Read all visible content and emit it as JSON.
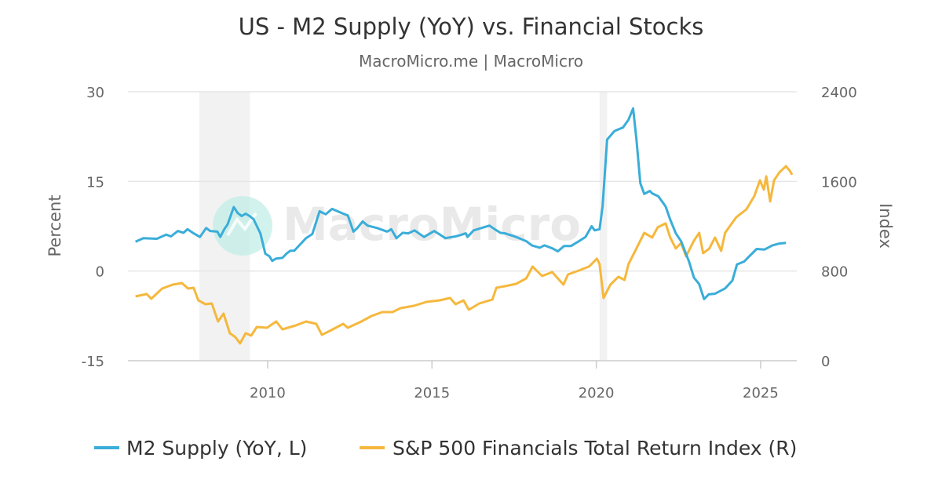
{
  "chart_data": {
    "type": "line",
    "title": "US - M2 Supply (YoY) vs. Financial Stocks",
    "subtitle": "MacroMicro.me | MacroMicro",
    "watermark": "MacroMicro",
    "xlim": [
      2005.75,
      2026.1
    ],
    "x_ticks": [
      2010,
      2015,
      2020,
      2025
    ],
    "x_tick_labels": [
      "2010",
      "2015",
      "2020",
      "2025"
    ],
    "y_left": {
      "label": "Percent",
      "range": [
        -15,
        30
      ],
      "ticks": [
        -15,
        0,
        15,
        30
      ],
      "tick_labels": [
        "-15",
        "0",
        "15",
        "30"
      ]
    },
    "y_right": {
      "label": "Index",
      "range": [
        0,
        2400
      ],
      "ticks": [
        0,
        800,
        1600,
        2400
      ],
      "tick_labels": [
        "0",
        "800",
        "1600",
        "2400"
      ]
    },
    "grid": true,
    "legend_position": "bottom",
    "shaded_periods": [
      [
        2007.92,
        2009.46
      ],
      [
        2020.1,
        2020.33
      ]
    ],
    "shade_color": "#f2f2f2",
    "series": [
      {
        "name": "M2 Supply (YoY, L)",
        "axis": "left",
        "color": "#3aadd9",
        "points": [
          [
            2005.98,
            4.9
          ],
          [
            2006.22,
            5.5
          ],
          [
            2006.63,
            5.4
          ],
          [
            2006.91,
            6.1
          ],
          [
            2007.06,
            5.8
          ],
          [
            2007.27,
            6.7
          ],
          [
            2007.44,
            6.4
          ],
          [
            2007.56,
            7.0
          ],
          [
            2007.75,
            6.3
          ],
          [
            2007.94,
            5.7
          ],
          [
            2008.13,
            7.2
          ],
          [
            2008.25,
            6.7
          ],
          [
            2008.47,
            6.6
          ],
          [
            2008.56,
            5.7
          ],
          [
            2008.68,
            7.0
          ],
          [
            2008.78,
            7.8
          ],
          [
            2008.97,
            10.7
          ],
          [
            2009.09,
            9.7
          ],
          [
            2009.21,
            9.2
          ],
          [
            2009.33,
            9.6
          ],
          [
            2009.45,
            9.2
          ],
          [
            2009.57,
            8.7
          ],
          [
            2009.78,
            6.3
          ],
          [
            2009.93,
            2.9
          ],
          [
            2010.05,
            2.5
          ],
          [
            2010.14,
            1.7
          ],
          [
            2010.26,
            2.1
          ],
          [
            2010.45,
            2.2
          ],
          [
            2010.57,
            2.9
          ],
          [
            2010.69,
            3.4
          ],
          [
            2010.81,
            3.4
          ],
          [
            2010.98,
            4.4
          ],
          [
            2011.17,
            5.5
          ],
          [
            2011.36,
            6.2
          ],
          [
            2011.58,
            10.0
          ],
          [
            2011.77,
            9.5
          ],
          [
            2011.96,
            10.4
          ],
          [
            2012.3,
            9.6
          ],
          [
            2012.44,
            9.3
          ],
          [
            2012.61,
            6.6
          ],
          [
            2012.73,
            7.2
          ],
          [
            2012.89,
            8.3
          ],
          [
            2013.04,
            7.6
          ],
          [
            2013.33,
            7.2
          ],
          [
            2013.64,
            6.6
          ],
          [
            2013.76,
            7.0
          ],
          [
            2013.92,
            5.5
          ],
          [
            2014.11,
            6.4
          ],
          [
            2014.28,
            6.3
          ],
          [
            2014.47,
            6.8
          ],
          [
            2014.76,
            5.7
          ],
          [
            2015.07,
            6.7
          ],
          [
            2015.41,
            5.5
          ],
          [
            2015.72,
            5.8
          ],
          [
            2015.91,
            6.1
          ],
          [
            2016.03,
            6.3
          ],
          [
            2016.08,
            5.7
          ],
          [
            2016.27,
            6.8
          ],
          [
            2016.75,
            7.6
          ],
          [
            2016.91,
            7.0
          ],
          [
            2017.08,
            6.4
          ],
          [
            2017.22,
            6.3
          ],
          [
            2017.56,
            5.7
          ],
          [
            2017.87,
            5.0
          ],
          [
            2018.04,
            4.3
          ],
          [
            2018.28,
            3.9
          ],
          [
            2018.42,
            4.3
          ],
          [
            2018.66,
            3.8
          ],
          [
            2018.83,
            3.3
          ],
          [
            2019.02,
            4.2
          ],
          [
            2019.23,
            4.2
          ],
          [
            2019.47,
            5.0
          ],
          [
            2019.67,
            5.7
          ],
          [
            2019.86,
            7.5
          ],
          [
            2019.95,
            6.8
          ],
          [
            2020.1,
            7.0
          ],
          [
            2020.19,
            10.8
          ],
          [
            2020.33,
            22.0
          ],
          [
            2020.55,
            23.4
          ],
          [
            2020.67,
            23.7
          ],
          [
            2020.81,
            24.0
          ],
          [
            2020.98,
            25.3
          ],
          [
            2021.12,
            27.2
          ],
          [
            2021.22,
            22.1
          ],
          [
            2021.34,
            14.7
          ],
          [
            2021.46,
            12.9
          ],
          [
            2021.63,
            13.4
          ],
          [
            2021.7,
            13.0
          ],
          [
            2021.89,
            12.5
          ],
          [
            2022.11,
            10.8
          ],
          [
            2022.25,
            8.6
          ],
          [
            2022.42,
            6.3
          ],
          [
            2022.58,
            5.0
          ],
          [
            2022.82,
            1.6
          ],
          [
            2022.97,
            -1.1
          ],
          [
            2023.13,
            -2.2
          ],
          [
            2023.28,
            -4.7
          ],
          [
            2023.42,
            -3.9
          ],
          [
            2023.61,
            -3.8
          ],
          [
            2023.92,
            -2.9
          ],
          [
            2024.14,
            -1.6
          ],
          [
            2024.28,
            1.1
          ],
          [
            2024.5,
            1.6
          ],
          [
            2024.64,
            2.4
          ],
          [
            2024.88,
            3.7
          ],
          [
            2025.12,
            3.6
          ],
          [
            2025.36,
            4.3
          ],
          [
            2025.57,
            4.6
          ],
          [
            2025.77,
            4.7
          ]
        ]
      },
      {
        "name": "S&P 500 Financials Total Return Index (R)",
        "axis": "right",
        "color": "#f5b83d",
        "points": [
          [
            2005.98,
            574
          ],
          [
            2006.32,
            595
          ],
          [
            2006.46,
            553
          ],
          [
            2006.79,
            644
          ],
          [
            2007.11,
            679
          ],
          [
            2007.39,
            693
          ],
          [
            2007.58,
            644
          ],
          [
            2007.75,
            651
          ],
          [
            2007.89,
            539
          ],
          [
            2008.11,
            504
          ],
          [
            2008.3,
            511
          ],
          [
            2008.49,
            350
          ],
          [
            2008.66,
            420
          ],
          [
            2008.85,
            245
          ],
          [
            2009.02,
            210
          ],
          [
            2009.16,
            154
          ],
          [
            2009.33,
            245
          ],
          [
            2009.5,
            224
          ],
          [
            2009.67,
            301
          ],
          [
            2009.98,
            294
          ],
          [
            2010.26,
            350
          ],
          [
            2010.45,
            280
          ],
          [
            2010.86,
            315
          ],
          [
            2011.17,
            350
          ],
          [
            2011.48,
            329
          ],
          [
            2011.65,
            231
          ],
          [
            2011.89,
            266
          ],
          [
            2012.3,
            329
          ],
          [
            2012.44,
            294
          ],
          [
            2012.85,
            350
          ],
          [
            2013.16,
            399
          ],
          [
            2013.49,
            434
          ],
          [
            2013.8,
            434
          ],
          [
            2014.04,
            469
          ],
          [
            2014.45,
            490
          ],
          [
            2014.83,
            525
          ],
          [
            2015.24,
            539
          ],
          [
            2015.55,
            560
          ],
          [
            2015.72,
            504
          ],
          [
            2015.96,
            539
          ],
          [
            2016.12,
            455
          ],
          [
            2016.44,
            511
          ],
          [
            2016.84,
            546
          ],
          [
            2016.96,
            651
          ],
          [
            2017.22,
            665
          ],
          [
            2017.56,
            686
          ],
          [
            2017.87,
            735
          ],
          [
            2018.06,
            840
          ],
          [
            2018.35,
            756
          ],
          [
            2018.66,
            791
          ],
          [
            2019.0,
            679
          ],
          [
            2019.14,
            770
          ],
          [
            2019.47,
            805
          ],
          [
            2019.78,
            840
          ],
          [
            2020.02,
            910
          ],
          [
            2020.1,
            861
          ],
          [
            2020.22,
            560
          ],
          [
            2020.43,
            679
          ],
          [
            2020.67,
            749
          ],
          [
            2020.86,
            721
          ],
          [
            2020.98,
            861
          ],
          [
            2021.22,
            1001
          ],
          [
            2021.46,
            1141
          ],
          [
            2021.7,
            1099
          ],
          [
            2021.87,
            1190
          ],
          [
            2022.11,
            1225
          ],
          [
            2022.25,
            1099
          ],
          [
            2022.42,
            1001
          ],
          [
            2022.58,
            1050
          ],
          [
            2022.73,
            931
          ],
          [
            2022.97,
            1071
          ],
          [
            2023.13,
            1141
          ],
          [
            2023.25,
            959
          ],
          [
            2023.44,
            1001
          ],
          [
            2023.61,
            1099
          ],
          [
            2023.8,
            980
          ],
          [
            2023.92,
            1141
          ],
          [
            2024.26,
            1281
          ],
          [
            2024.57,
            1351
          ],
          [
            2024.81,
            1470
          ],
          [
            2024.98,
            1610
          ],
          [
            2025.1,
            1526
          ],
          [
            2025.17,
            1645
          ],
          [
            2025.29,
            1421
          ],
          [
            2025.41,
            1610
          ],
          [
            2025.57,
            1680
          ],
          [
            2025.77,
            1736
          ],
          [
            2025.89,
            1694
          ],
          [
            2025.96,
            1659
          ]
        ]
      }
    ]
  }
}
